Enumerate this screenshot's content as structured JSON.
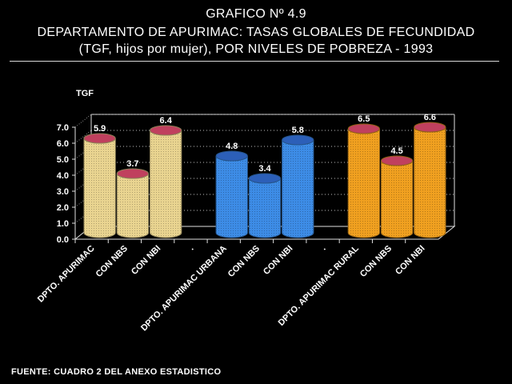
{
  "title_line1": "GRAFICO Nº 4.9",
  "title_line2": "DEPARTAMENTO DE APURIMAC: TASAS GLOBALES DE FECUNDIDAD",
  "title_line3": "(TGF, hijos por mujer), POR NIVELES DE POBREZA - 1993",
  "source": "FUENTE: CUADRO 2 DEL ANEXO ESTADISTICO",
  "colors": {
    "group1": "#e9d490",
    "group2": "#3d8ce6",
    "group3": "#f0a020",
    "background": "#000000",
    "grid": "#c0c0c0"
  },
  "chart_data": {
    "type": "bar",
    "style": "3d-cylinder",
    "ylabel": "TGF",
    "ylim": [
      0,
      7
    ],
    "yticks": [
      "0.0",
      "1.0",
      "2.0",
      "3.0",
      "4.0",
      "5.0",
      "6.0",
      "7.0"
    ],
    "grid": true,
    "categories": [
      "DPTO. APURIMAC",
      "CON NBS",
      "CON NBI",
      ".",
      "DPTO. APURIMAC URBANA",
      "CON NBS",
      "CON NBI",
      ".",
      "DPTO. APURIMAC RURAL",
      "CON NBS",
      "CON NBI"
    ],
    "groups": [
      {
        "color": "#e9d490",
        "values": [
          5.9,
          3.7,
          6.4
        ],
        "labels": [
          "5.9",
          "3.7",
          "6.4"
        ]
      },
      {
        "color": "#3d8ce6",
        "values": [
          4.8,
          3.4,
          5.8
        ],
        "labels": [
          "4.8",
          "3.4",
          "5.8"
        ]
      },
      {
        "color": "#f0a020",
        "values": [
          6.5,
          4.5,
          6.6
        ],
        "labels": [
          "6.5",
          "4.5",
          "6.6"
        ]
      }
    ]
  }
}
